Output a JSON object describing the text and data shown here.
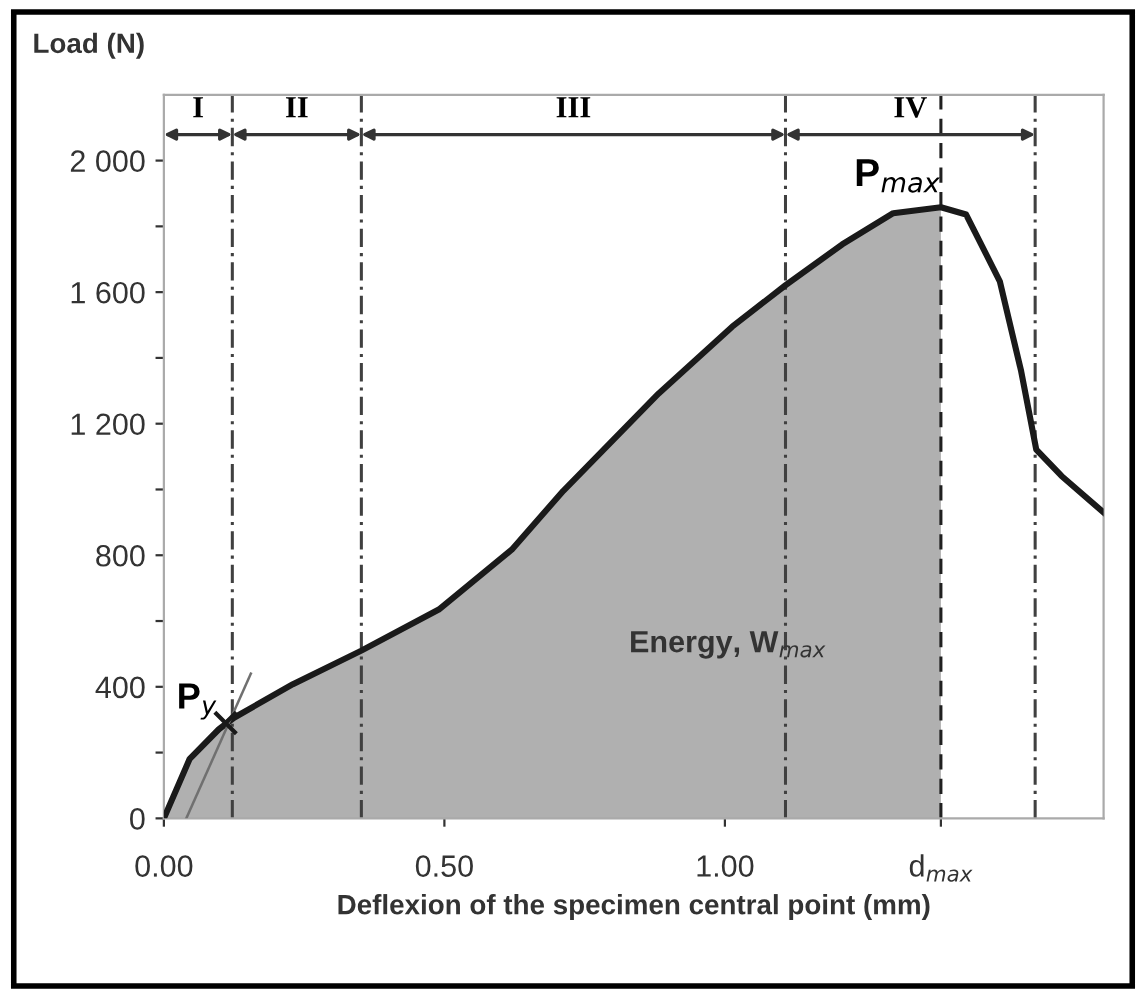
{
  "chart_data": {
    "type": "line",
    "xlabel": "Deflexion of the specimen central point (mm)",
    "ylabel": "Load (N)",
    "xlim": [
      0,
      1.675
    ],
    "ylim": [
      0,
      2200
    ],
    "xticks": [
      {
        "value": 0,
        "label": "0.00"
      },
      {
        "value": 0.5,
        "label": "0.50"
      },
      {
        "value": 1.0,
        "label": "1.00"
      },
      {
        "value": 1.385,
        "label": "d$_{max}$"
      }
    ],
    "yticks": [
      0,
      {
        "value": 200,
        "label": null
      },
      400,
      {
        "value": 600,
        "label": null
      },
      800,
      {
        "value": 1000,
        "label": null
      },
      {
        "value": 1200,
        "label": "1 200"
      },
      {
        "value": 1400,
        "label": null
      },
      {
        "value": 1600,
        "label": "1 600"
      },
      {
        "value": 1800,
        "label": null
      },
      {
        "value": 2000,
        "label": "2 000"
      }
    ],
    "grid": false,
    "legend": false,
    "series": [
      {
        "type": "area",
        "color": "#b0b0b0",
        "x": [
          0,
          0.046,
          0.098,
          0.125,
          0.23,
          0.352,
          0.49,
          0.62,
          0.712,
          0.882,
          1.013,
          1.108,
          1.209,
          1.3,
          1.385
        ],
        "values": [
          0,
          181,
          271,
          306,
          408,
          510,
          635,
          817,
          996,
          1292,
          1495,
          1621,
          1745,
          1840,
          1858
        ]
      },
      {
        "color": "#1a1a1a",
        "x": [
          0,
          0.046,
          0.098,
          0.125,
          0.23,
          0.352,
          0.49,
          0.62,
          0.712,
          0.882,
          1.013,
          1.108,
          1.209,
          1.3,
          1.385,
          1.43,
          1.49,
          1.528,
          1.555,
          1.6,
          1.675
        ],
        "values": [
          0,
          181,
          271,
          306,
          408,
          510,
          635,
          817,
          996,
          1292,
          1495,
          1621,
          1745,
          1840,
          1858,
          1836,
          1633,
          1360,
          1121,
          1041,
          930
        ]
      },
      {
        "type": "line",
        "color": "#707070",
        "x": [
          0.04,
          0.155
        ],
        "values": [
          0,
          440
        ]
      },
      {
        "type": "scatter",
        "color": "#1a1a1a",
        "marker": "cross",
        "x": [
          0.11
        ],
        "values": [
          290
        ]
      }
    ],
    "ref_lines": [
      {
        "axis": "x",
        "value": 0.122,
        "line_style": "dashdot",
        "color": "#404040"
      },
      {
        "axis": "x",
        "value": 0.352,
        "line_style": "dashdot",
        "color": "#404040"
      },
      {
        "axis": "x",
        "value": 1.108,
        "line_style": "dashdot",
        "color": "#404040"
      },
      {
        "axis": "x",
        "value": 1.385,
        "line_style": "dashed",
        "color": "#202020"
      },
      {
        "axis": "x",
        "value": 1.553,
        "line_style": "dashdot",
        "color": "#404040"
      }
    ],
    "annotations": [
      "I",
      "II",
      "III",
      "IV",
      {
        "text": "P$_{max}$",
        "x": 1.385,
        "y": 1858
      },
      {
        "text": "P$_{y}$",
        "x": 0.11,
        "y": 290
      },
      "Energy, W$_{max}$"
    ]
  }
}
